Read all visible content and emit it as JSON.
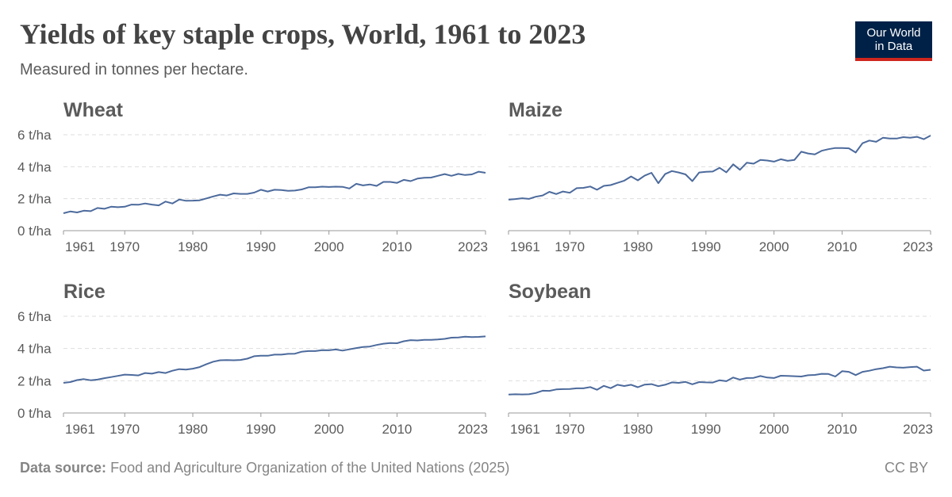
{
  "header": {
    "title": "Yields of key staple crops, World, 1961 to 2023",
    "subtitle": "Measured in tonnes per hectare."
  },
  "logo": {
    "line1": "Our World",
    "line2": "in Data"
  },
  "footer": {
    "source_label": "Data source:",
    "source_text": "Food and Agriculture Organization of the United Nations (2025)",
    "license": "CC BY"
  },
  "colors": {
    "line": "#4c6a9c",
    "grid": "#dddddd",
    "text": "#5b5b5b",
    "title": "#444444"
  },
  "chart_data": [
    {
      "type": "line",
      "title": "Wheat",
      "ylim": [
        0,
        6
      ],
      "yticks": [
        0,
        2,
        4,
        6
      ],
      "ytick_labels": [
        "0 t/ha",
        "2 t/ha",
        "4 t/ha",
        "6 t/ha"
      ],
      "xlim": [
        1961,
        2023
      ],
      "xticks": [
        1961,
        1970,
        1980,
        1990,
        2000,
        2010,
        2023
      ],
      "grid": true,
      "series": [
        {
          "x": [
            1961,
            1962,
            1963,
            1964,
            1965,
            1966,
            1967,
            1968,
            1969,
            1970,
            1971,
            1972,
            1973,
            1974,
            1975,
            1976,
            1977,
            1978,
            1979,
            1980,
            1981,
            1982,
            1983,
            1984,
            1985,
            1986,
            1987,
            1988,
            1989,
            1990,
            1991,
            1992,
            1993,
            1994,
            1995,
            1996,
            1997,
            1998,
            1999,
            2000,
            2001,
            2002,
            2003,
            2004,
            2005,
            2006,
            2007,
            2008,
            2009,
            2010,
            2011,
            2012,
            2013,
            2014,
            2015,
            2016,
            2017,
            2018,
            2019,
            2020,
            2021,
            2022,
            2023
          ],
          "values": [
            1.09,
            1.2,
            1.14,
            1.25,
            1.22,
            1.42,
            1.37,
            1.5,
            1.47,
            1.5,
            1.63,
            1.62,
            1.7,
            1.63,
            1.58,
            1.82,
            1.7,
            1.95,
            1.87,
            1.88,
            1.9,
            2.02,
            2.14,
            2.25,
            2.2,
            2.33,
            2.3,
            2.3,
            2.38,
            2.56,
            2.45,
            2.56,
            2.54,
            2.49,
            2.51,
            2.58,
            2.71,
            2.71,
            2.75,
            2.73,
            2.75,
            2.74,
            2.64,
            2.93,
            2.83,
            2.89,
            2.8,
            3.05,
            3.05,
            2.99,
            3.18,
            3.1,
            3.26,
            3.31,
            3.32,
            3.43,
            3.54,
            3.43,
            3.55,
            3.48,
            3.52,
            3.69,
            3.62
          ]
        }
      ]
    },
    {
      "type": "line",
      "title": "Maize",
      "ylim": [
        0,
        6
      ],
      "yticks": [
        0,
        2,
        4,
        6
      ],
      "ytick_labels": [
        "0 t/ha",
        "2 t/ha",
        "4 t/ha",
        "6 t/ha"
      ],
      "xlim": [
        1961,
        2023
      ],
      "xticks": [
        1961,
        1970,
        1980,
        1990,
        2000,
        2010,
        2023
      ],
      "grid": true,
      "series": [
        {
          "x": [
            1961,
            1962,
            1963,
            1964,
            1965,
            1966,
            1967,
            1968,
            1969,
            1970,
            1971,
            1972,
            1973,
            1974,
            1975,
            1976,
            1977,
            1978,
            1979,
            1980,
            1981,
            1982,
            1983,
            1984,
            1985,
            1986,
            1987,
            1988,
            1989,
            1990,
            1991,
            1992,
            1993,
            1994,
            1995,
            1996,
            1997,
            1998,
            1999,
            2000,
            2001,
            2002,
            2003,
            2004,
            2005,
            2006,
            2007,
            2008,
            2009,
            2010,
            2011,
            2012,
            2013,
            2014,
            2015,
            2016,
            2017,
            2018,
            2019,
            2020,
            2021,
            2022,
            2023
          ],
          "values": [
            1.94,
            1.98,
            2.03,
            1.99,
            2.12,
            2.2,
            2.43,
            2.29,
            2.45,
            2.37,
            2.66,
            2.68,
            2.76,
            2.56,
            2.8,
            2.85,
            2.99,
            3.13,
            3.39,
            3.15,
            3.44,
            3.62,
            2.97,
            3.54,
            3.73,
            3.64,
            3.52,
            3.1,
            3.64,
            3.68,
            3.7,
            3.93,
            3.65,
            4.15,
            3.81,
            4.25,
            4.19,
            4.43,
            4.39,
            4.32,
            4.47,
            4.37,
            4.43,
            4.94,
            4.83,
            4.77,
            5.0,
            5.1,
            5.17,
            5.17,
            5.15,
            4.89,
            5.47,
            5.64,
            5.56,
            5.81,
            5.76,
            5.76,
            5.85,
            5.81,
            5.87,
            5.72,
            5.95
          ]
        }
      ]
    },
    {
      "type": "line",
      "title": "Rice",
      "ylim": [
        0,
        6
      ],
      "yticks": [
        0,
        2,
        4,
        6
      ],
      "ytick_labels": [
        "0 t/ha",
        "2 t/ha",
        "4 t/ha",
        "6 t/ha"
      ],
      "xlim": [
        1961,
        2023
      ],
      "xticks": [
        1961,
        1970,
        1980,
        1990,
        2000,
        2010,
        2023
      ],
      "grid": true,
      "series": [
        {
          "x": [
            1961,
            1962,
            1963,
            1964,
            1965,
            1966,
            1967,
            1968,
            1969,
            1970,
            1971,
            1972,
            1973,
            1974,
            1975,
            1976,
            1977,
            1978,
            1979,
            1980,
            1981,
            1982,
            1983,
            1984,
            1985,
            1986,
            1987,
            1988,
            1989,
            1990,
            1991,
            1992,
            1993,
            1994,
            1995,
            1996,
            1997,
            1998,
            1999,
            2000,
            2001,
            2002,
            2003,
            2004,
            2005,
            2006,
            2007,
            2008,
            2009,
            2010,
            2011,
            2012,
            2013,
            2014,
            2015,
            2016,
            2017,
            2018,
            2019,
            2020,
            2021,
            2022,
            2023
          ],
          "values": [
            1.87,
            1.92,
            2.04,
            2.1,
            2.03,
            2.07,
            2.16,
            2.23,
            2.3,
            2.38,
            2.36,
            2.33,
            2.48,
            2.44,
            2.54,
            2.48,
            2.62,
            2.72,
            2.69,
            2.75,
            2.85,
            3.03,
            3.18,
            3.27,
            3.28,
            3.27,
            3.29,
            3.37,
            3.52,
            3.55,
            3.55,
            3.62,
            3.62,
            3.67,
            3.68,
            3.8,
            3.84,
            3.84,
            3.9,
            3.89,
            3.94,
            3.87,
            3.95,
            4.03,
            4.09,
            4.12,
            4.22,
            4.3,
            4.34,
            4.33,
            4.45,
            4.52,
            4.5,
            4.54,
            4.54,
            4.56,
            4.6,
            4.67,
            4.68,
            4.73,
            4.71,
            4.72,
            4.75
          ]
        }
      ]
    },
    {
      "type": "line",
      "title": "Soybean",
      "ylim": [
        0,
        6
      ],
      "yticks": [
        0,
        2,
        4,
        6
      ],
      "ytick_labels": [
        "0 t/ha",
        "2 t/ha",
        "4 t/ha",
        "6 t/ha"
      ],
      "xlim": [
        1961,
        2023
      ],
      "xticks": [
        1961,
        1970,
        1980,
        1990,
        2000,
        2010,
        2023
      ],
      "grid": true,
      "series": [
        {
          "x": [
            1961,
            1962,
            1963,
            1964,
            1965,
            1966,
            1967,
            1968,
            1969,
            1970,
            1971,
            1972,
            1973,
            1974,
            1975,
            1976,
            1977,
            1978,
            1979,
            1980,
            1981,
            1982,
            1983,
            1984,
            1985,
            1986,
            1987,
            1988,
            1989,
            1990,
            1991,
            1992,
            1993,
            1994,
            1995,
            1996,
            1997,
            1998,
            1999,
            2000,
            2001,
            2002,
            2003,
            2004,
            2005,
            2006,
            2007,
            2008,
            2009,
            2010,
            2011,
            2012,
            2013,
            2014,
            2015,
            2016,
            2017,
            2018,
            2019,
            2020,
            2021,
            2022,
            2023
          ],
          "values": [
            1.14,
            1.16,
            1.15,
            1.16,
            1.24,
            1.38,
            1.37,
            1.46,
            1.48,
            1.49,
            1.53,
            1.53,
            1.61,
            1.44,
            1.68,
            1.54,
            1.75,
            1.67,
            1.75,
            1.6,
            1.76,
            1.79,
            1.66,
            1.75,
            1.9,
            1.87,
            1.93,
            1.78,
            1.92,
            1.9,
            1.89,
            2.03,
            1.97,
            2.2,
            2.07,
            2.17,
            2.18,
            2.29,
            2.2,
            2.17,
            2.31,
            2.3,
            2.28,
            2.26,
            2.34,
            2.36,
            2.43,
            2.42,
            2.26,
            2.59,
            2.55,
            2.35,
            2.55,
            2.62,
            2.72,
            2.78,
            2.87,
            2.83,
            2.81,
            2.85,
            2.87,
            2.63,
            2.68
          ]
        }
      ]
    }
  ]
}
